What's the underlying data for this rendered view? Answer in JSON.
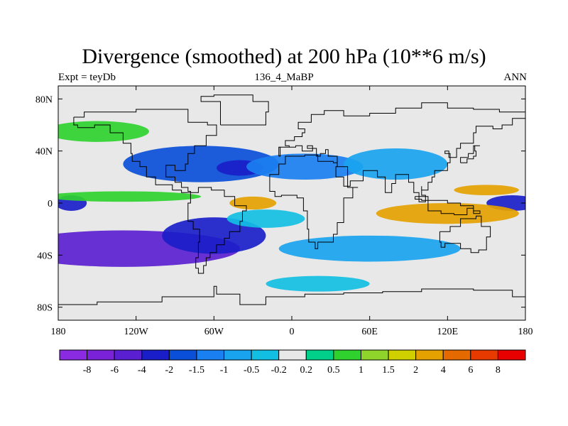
{
  "title": "Divergence (smoothed) at 200 hPa (10**6 m/s)",
  "subtitle_left": "Expt = teyDb",
  "subtitle_center": "136_4_MaBP",
  "subtitle_right": "ANN",
  "colors": {
    "background": "#e8e8e8",
    "coast": "#000000",
    "palette": [
      "#8a2be2",
      "#7a22d8",
      "#5a1fd0",
      "#1a1ec8",
      "#0a4fd8",
      "#1a7ff0",
      "#19a3ef",
      "#12bfe3",
      "#e8e8e8",
      "#00d08a",
      "#2fd12f",
      "#8fd42a",
      "#d0d000",
      "#e4a100",
      "#e46a00",
      "#e63a00",
      "#e80000"
    ]
  },
  "colorbar": {
    "labels": [
      "-8",
      "-6",
      "-4",
      "-2",
      "-1.5",
      "-1",
      "-0.5",
      "-0.2",
      "0.2",
      "0.5",
      "1",
      "1.5",
      "2",
      "4",
      "6",
      "8"
    ]
  },
  "axes": {
    "x_ticks": [
      {
        "v": -180,
        "label": "180"
      },
      {
        "v": -120,
        "label": "120W"
      },
      {
        "v": -60,
        "label": "60W"
      },
      {
        "v": 0,
        "label": "0"
      },
      {
        "v": 60,
        "label": "60E"
      },
      {
        "v": 120,
        "label": "120E"
      },
      {
        "v": 180,
        "label": "180"
      }
    ],
    "y_ticks": [
      {
        "v": 80,
        "label": "80N"
      },
      {
        "v": 40,
        "label": "40N"
      },
      {
        "v": 0,
        "label": "0"
      },
      {
        "v": -40,
        "label": "40S"
      },
      {
        "v": -80,
        "label": "80S"
      }
    ],
    "lon_range": [
      -180,
      180
    ],
    "lat_range": [
      -90,
      90
    ]
  },
  "field": {
    "blobs": [
      {
        "lon": -130,
        "lat": -35,
        "a": 90,
        "b": 14,
        "c": 2
      },
      {
        "lon": -60,
        "lat": -25,
        "a": 40,
        "b": 14,
        "c": 3
      },
      {
        "lon": -70,
        "lat": 30,
        "a": 60,
        "b": 14,
        "c": 4
      },
      {
        "lon": -40,
        "lat": 27,
        "a": 18,
        "b": 6,
        "c": 3
      },
      {
        "lon": -170,
        "lat": 0,
        "a": 12,
        "b": 6,
        "c": 3
      },
      {
        "lon": 10,
        "lat": 28,
        "a": 45,
        "b": 10,
        "c": 5
      },
      {
        "lon": 80,
        "lat": 30,
        "a": 40,
        "b": 12,
        "c": 6
      },
      {
        "lon": 60,
        "lat": -35,
        "a": 70,
        "b": 10,
        "c": 6
      },
      {
        "lon": 170,
        "lat": 0,
        "a": 20,
        "b": 6,
        "c": 3
      },
      {
        "lon": -20,
        "lat": -12,
        "a": 30,
        "b": 7,
        "c": 7
      },
      {
        "lon": -150,
        "lat": 55,
        "a": 40,
        "b": 8,
        "c": 10
      },
      {
        "lon": -130,
        "lat": 5,
        "a": 60,
        "b": 4,
        "c": 10
      },
      {
        "lon": 120,
        "lat": -8,
        "a": 55,
        "b": 8,
        "c": 13
      },
      {
        "lon": -30,
        "lat": 0,
        "a": 18,
        "b": 5,
        "c": 13
      },
      {
        "lon": 150,
        "lat": 10,
        "a": 25,
        "b": 4,
        "c": 13
      },
      {
        "lon": 20,
        "lat": -62,
        "a": 40,
        "b": 6,
        "c": 7
      }
    ]
  }
}
